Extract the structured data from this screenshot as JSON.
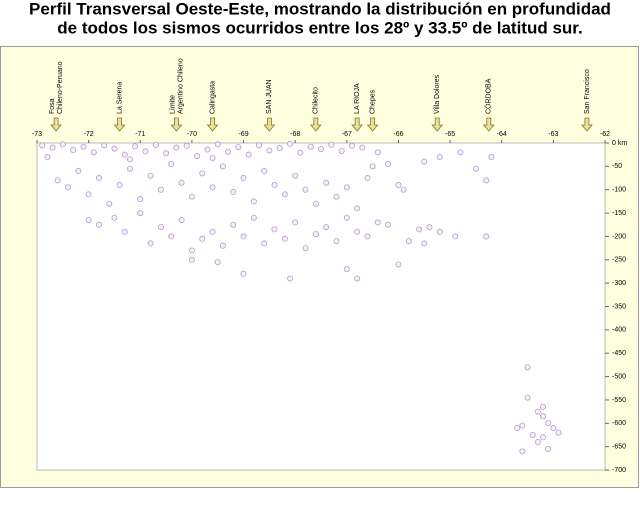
{
  "chart_data": {
    "type": "scatter",
    "title": [
      "Perfil Transversal Oeste-Este, mostrando la distribución en profundidad",
      "de todos los sismos ocurridos entre los 28º y 33.5º de latitud sur."
    ],
    "xlim": [
      -73,
      -62
    ],
    "xticks": [
      -73,
      -72,
      -71,
      -70,
      -69,
      -68,
      -67,
      -66,
      -65,
      -64,
      -63,
      -62
    ],
    "ylim": [
      -700,
      0
    ],
    "yticks": [
      {
        "value": 0,
        "label": "0 km"
      },
      -50,
      -100,
      -150,
      -200,
      -250,
      -300,
      -350,
      -400,
      -450,
      -500,
      -550,
      -600,
      -650,
      -700
    ],
    "color": "#b89acb",
    "annotations": [
      {
        "lines": [
          "Fosa",
          "Chileno-Peruano"
        ],
        "x": -72.63
      },
      {
        "lines": [
          "La Serena"
        ],
        "x": -71.4
      },
      {
        "lines": [
          "Límite",
          "Argentino Chileno"
        ],
        "x": -70.3
      },
      {
        "lines": [
          "Calingasta"
        ],
        "x": -69.6
      },
      {
        "lines": [
          "SAN JUAN"
        ],
        "x": -68.5
      },
      {
        "lines": [
          "Chilecito"
        ],
        "x": -67.6
      },
      {
        "lines": [
          "LA RIOJA"
        ],
        "x": -66.8
      },
      {
        "lines": [
          "Chepes"
        ],
        "x": -66.5
      },
      {
        "lines": [
          "Villa Dolores"
        ],
        "x": -65.25
      },
      {
        "lines": [
          "CÓRDOBA"
        ],
        "x": -64.25
      },
      {
        "lines": [
          "San Francisco"
        ],
        "x": -62.35
      }
    ],
    "x": [
      -72.9,
      -72.7,
      -72.5,
      -72.3,
      -72.1,
      -71.9,
      -71.7,
      -71.5,
      -71.3,
      -71.1,
      -70.9,
      -70.7,
      -70.5,
      -70.3,
      -70.1,
      -69.9,
      -69.7,
      -69.5,
      -69.3,
      -69.1,
      -68.9,
      -68.7,
      -68.5,
      -68.3,
      -68.1,
      -67.9,
      -67.7,
      -67.5,
      -67.3,
      -67.1,
      -66.9,
      -66.7,
      -66.4,
      -72.8,
      -71.2,
      -69.6,
      -72.6,
      -72.4,
      -72.2,
      -72,
      -71.8,
      -71.6,
      -71.4,
      -71.2,
      -71,
      -70.8,
      -70.6,
      -70.4,
      -70.2,
      -70,
      -69.8,
      -69.6,
      -69.4,
      -69.2,
      -69,
      -68.8,
      -68.6,
      -68.4,
      -68.2,
      -68,
      -67.8,
      -67.6,
      -67.4,
      -67.2,
      -67,
      -66.8,
      -66.6,
      -66.5,
      -66.2,
      -66,
      -65.9,
      -65.5,
      -65.2,
      -64.8,
      -64.5,
      -64.2,
      -64.3,
      -72,
      -71.8,
      -71.5,
      -71.3,
      -71,
      -70.8,
      -70.6,
      -70.4,
      -70.2,
      -70,
      -69.8,
      -69.6,
      -69.4,
      -69.2,
      -69,
      -68.8,
      -68.6,
      -68.4,
      -68.2,
      -68,
      -67.8,
      -67.6,
      -67.4,
      -67.2,
      -67,
      -66.8,
      -66.6,
      -66.4,
      -66.2,
      -65.8,
      -65.6,
      -65.4,
      -65.2,
      -64.9,
      -64.3,
      -65.5,
      -69.5,
      -69,
      -68.1,
      -67,
      -66.8,
      -66,
      -70,
      -63.5,
      -63.5,
      -63.6,
      -63.7,
      -63.3,
      -63.2,
      -63.2,
      -63.1,
      -63,
      -63.2,
      -63.4,
      -63.3,
      -63.1,
      -63.6,
      -62.9
    ],
    "values": [
      -5,
      -10,
      -3,
      -15,
      -8,
      -20,
      -5,
      -12,
      -25,
      -7,
      -18,
      -4,
      -22,
      -10,
      -6,
      -28,
      -14,
      -3,
      -19,
      -9,
      -25,
      -5,
      -16,
      -11,
      -2,
      -21,
      -8,
      -13,
      -4,
      -17,
      -6,
      -10,
      -20,
      -30,
      -35,
      -32,
      -80,
      -95,
      -60,
      -110,
      -75,
      -130,
      -90,
      -55,
      -120,
      -70,
      -100,
      -45,
      -85,
      -115,
      -65,
      -95,
      -50,
      -105,
      -75,
      -125,
      -60,
      -90,
      -110,
      -70,
      -100,
      -130,
      -85,
      -115,
      -95,
      -140,
      -75,
      -50,
      -45,
      -90,
      -100,
      -40,
      -30,
      -20,
      -55,
      -30,
      -80,
      -165,
      -175,
      -160,
      -190,
      -150,
      -215,
      -180,
      -200,
      -165,
      -230,
      -205,
      -190,
      -220,
      -175,
      -200,
      -160,
      -215,
      -185,
      -205,
      -170,
      -225,
      -195,
      -180,
      -210,
      -160,
      -190,
      -200,
      -170,
      -175,
      -210,
      -185,
      -180,
      -190,
      -200,
      -200,
      -215,
      -255,
      -280,
      -290,
      -270,
      -290,
      -260,
      -250,
      -480,
      -545,
      -605,
      -610,
      -575,
      -565,
      -585,
      -600,
      -610,
      -630,
      -625,
      -640,
      -655,
      -660,
      -620
    ]
  }
}
